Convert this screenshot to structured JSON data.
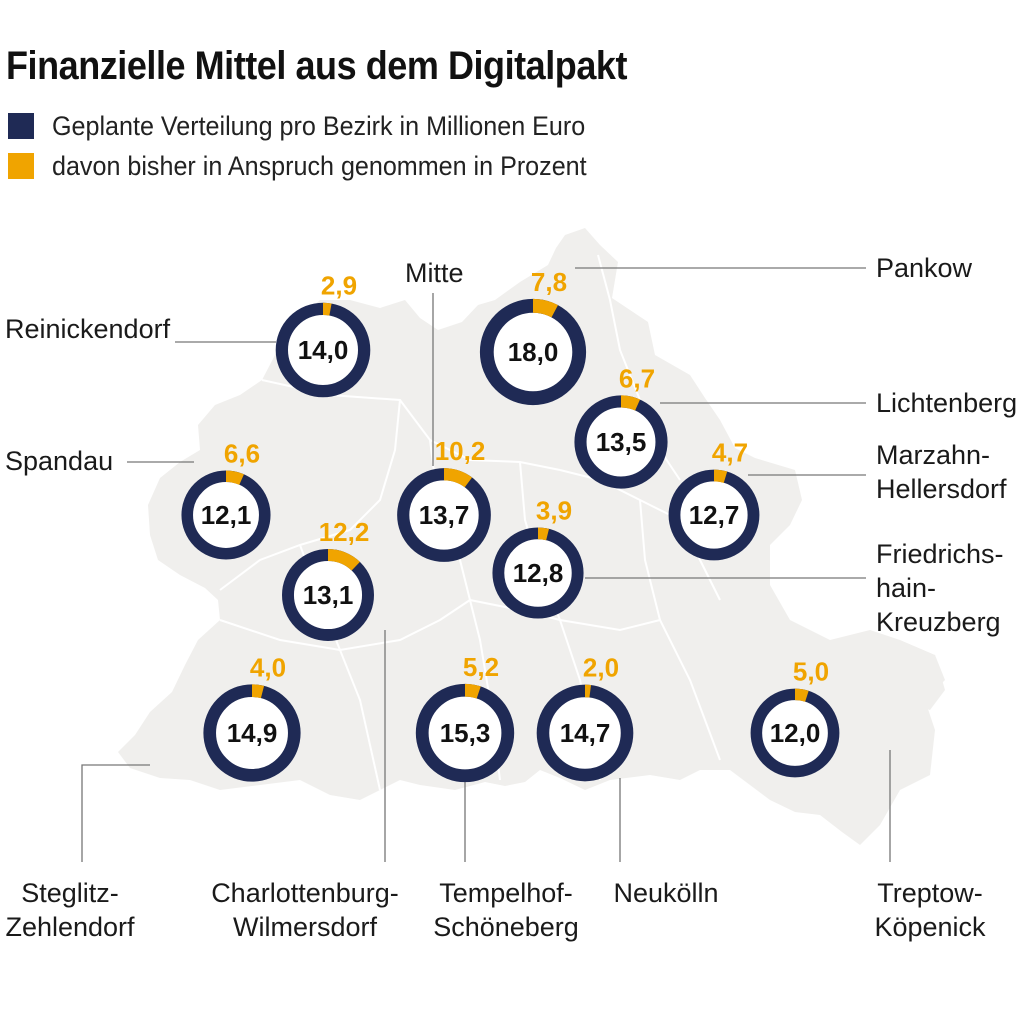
{
  "chart_data": {
    "type": "donut-map",
    "title": "Finanzielle Mittel aus dem Digitalpakt",
    "legend": [
      {
        "label": "Geplante Verteilung pro Bezirk in Millionen Euro",
        "color": "#1f2a55"
      },
      {
        "label": "davon bisher in Anspruch genommen in Prozent",
        "color": "#f0a400"
      }
    ],
    "colors": {
      "navy": "#1f2a55",
      "accent": "#f0a400",
      "map": "#f0efed",
      "leader": "#888888"
    },
    "districts": [
      {
        "id": "reinickendorf",
        "name": [
          "Reinickendorf"
        ],
        "million_eur": "14,0",
        "percent_used": "2,9",
        "value": 14.0,
        "percent": 2.9
      },
      {
        "id": "pankow",
        "name": [
          "Pankow"
        ],
        "million_eur": "18,0",
        "percent_used": "7,8",
        "value": 18.0,
        "percent": 7.8
      },
      {
        "id": "mitte",
        "name": [
          "Mitte"
        ],
        "million_eur": "13,7",
        "percent_used": "10,2",
        "value": 13.7,
        "percent": 10.2
      },
      {
        "id": "lichtenberg",
        "name": [
          "Lichtenberg"
        ],
        "million_eur": "13,5",
        "percent_used": "6,7",
        "value": 13.5,
        "percent": 6.7
      },
      {
        "id": "spandau",
        "name": [
          "Spandau"
        ],
        "million_eur": "12,1",
        "percent_used": "6,6",
        "value": 12.1,
        "percent": 6.6
      },
      {
        "id": "marzahn",
        "name": [
          "Marzahn-",
          "Hellersdorf"
        ],
        "million_eur": "12,7",
        "percent_used": "4,7",
        "value": 12.7,
        "percent": 4.7
      },
      {
        "id": "charlottenburg",
        "name": [
          "Charlottenburg-",
          "Wilmersdorf"
        ],
        "million_eur": "13,1",
        "percent_used": "12,2",
        "value": 13.1,
        "percent": 12.2
      },
      {
        "id": "friedrichshain",
        "name": [
          "Friedrichs-",
          "hain-",
          "Kreuzberg"
        ],
        "million_eur": "12,8",
        "percent_used": "3,9",
        "value": 12.8,
        "percent": 3.9
      },
      {
        "id": "steglitz",
        "name": [
          "Steglitz-",
          "Zehlendorf"
        ],
        "million_eur": "14,9",
        "percent_used": "4,0",
        "value": 14.9,
        "percent": 4.0
      },
      {
        "id": "tempelhof",
        "name": [
          "Tempelhof-",
          "Schöneberg"
        ],
        "million_eur": "15,3",
        "percent_used": "5,2",
        "value": 15.3,
        "percent": 5.2
      },
      {
        "id": "neukoelln",
        "name": [
          "Neukölln"
        ],
        "million_eur": "14,7",
        "percent_used": "2,0",
        "value": 14.7,
        "percent": 2.0
      },
      {
        "id": "treptow",
        "name": [
          "Treptow-",
          "Köpenick"
        ],
        "million_eur": "12,0",
        "percent_used": "5,0",
        "value": 12.0,
        "percent": 5.0
      }
    ]
  }
}
